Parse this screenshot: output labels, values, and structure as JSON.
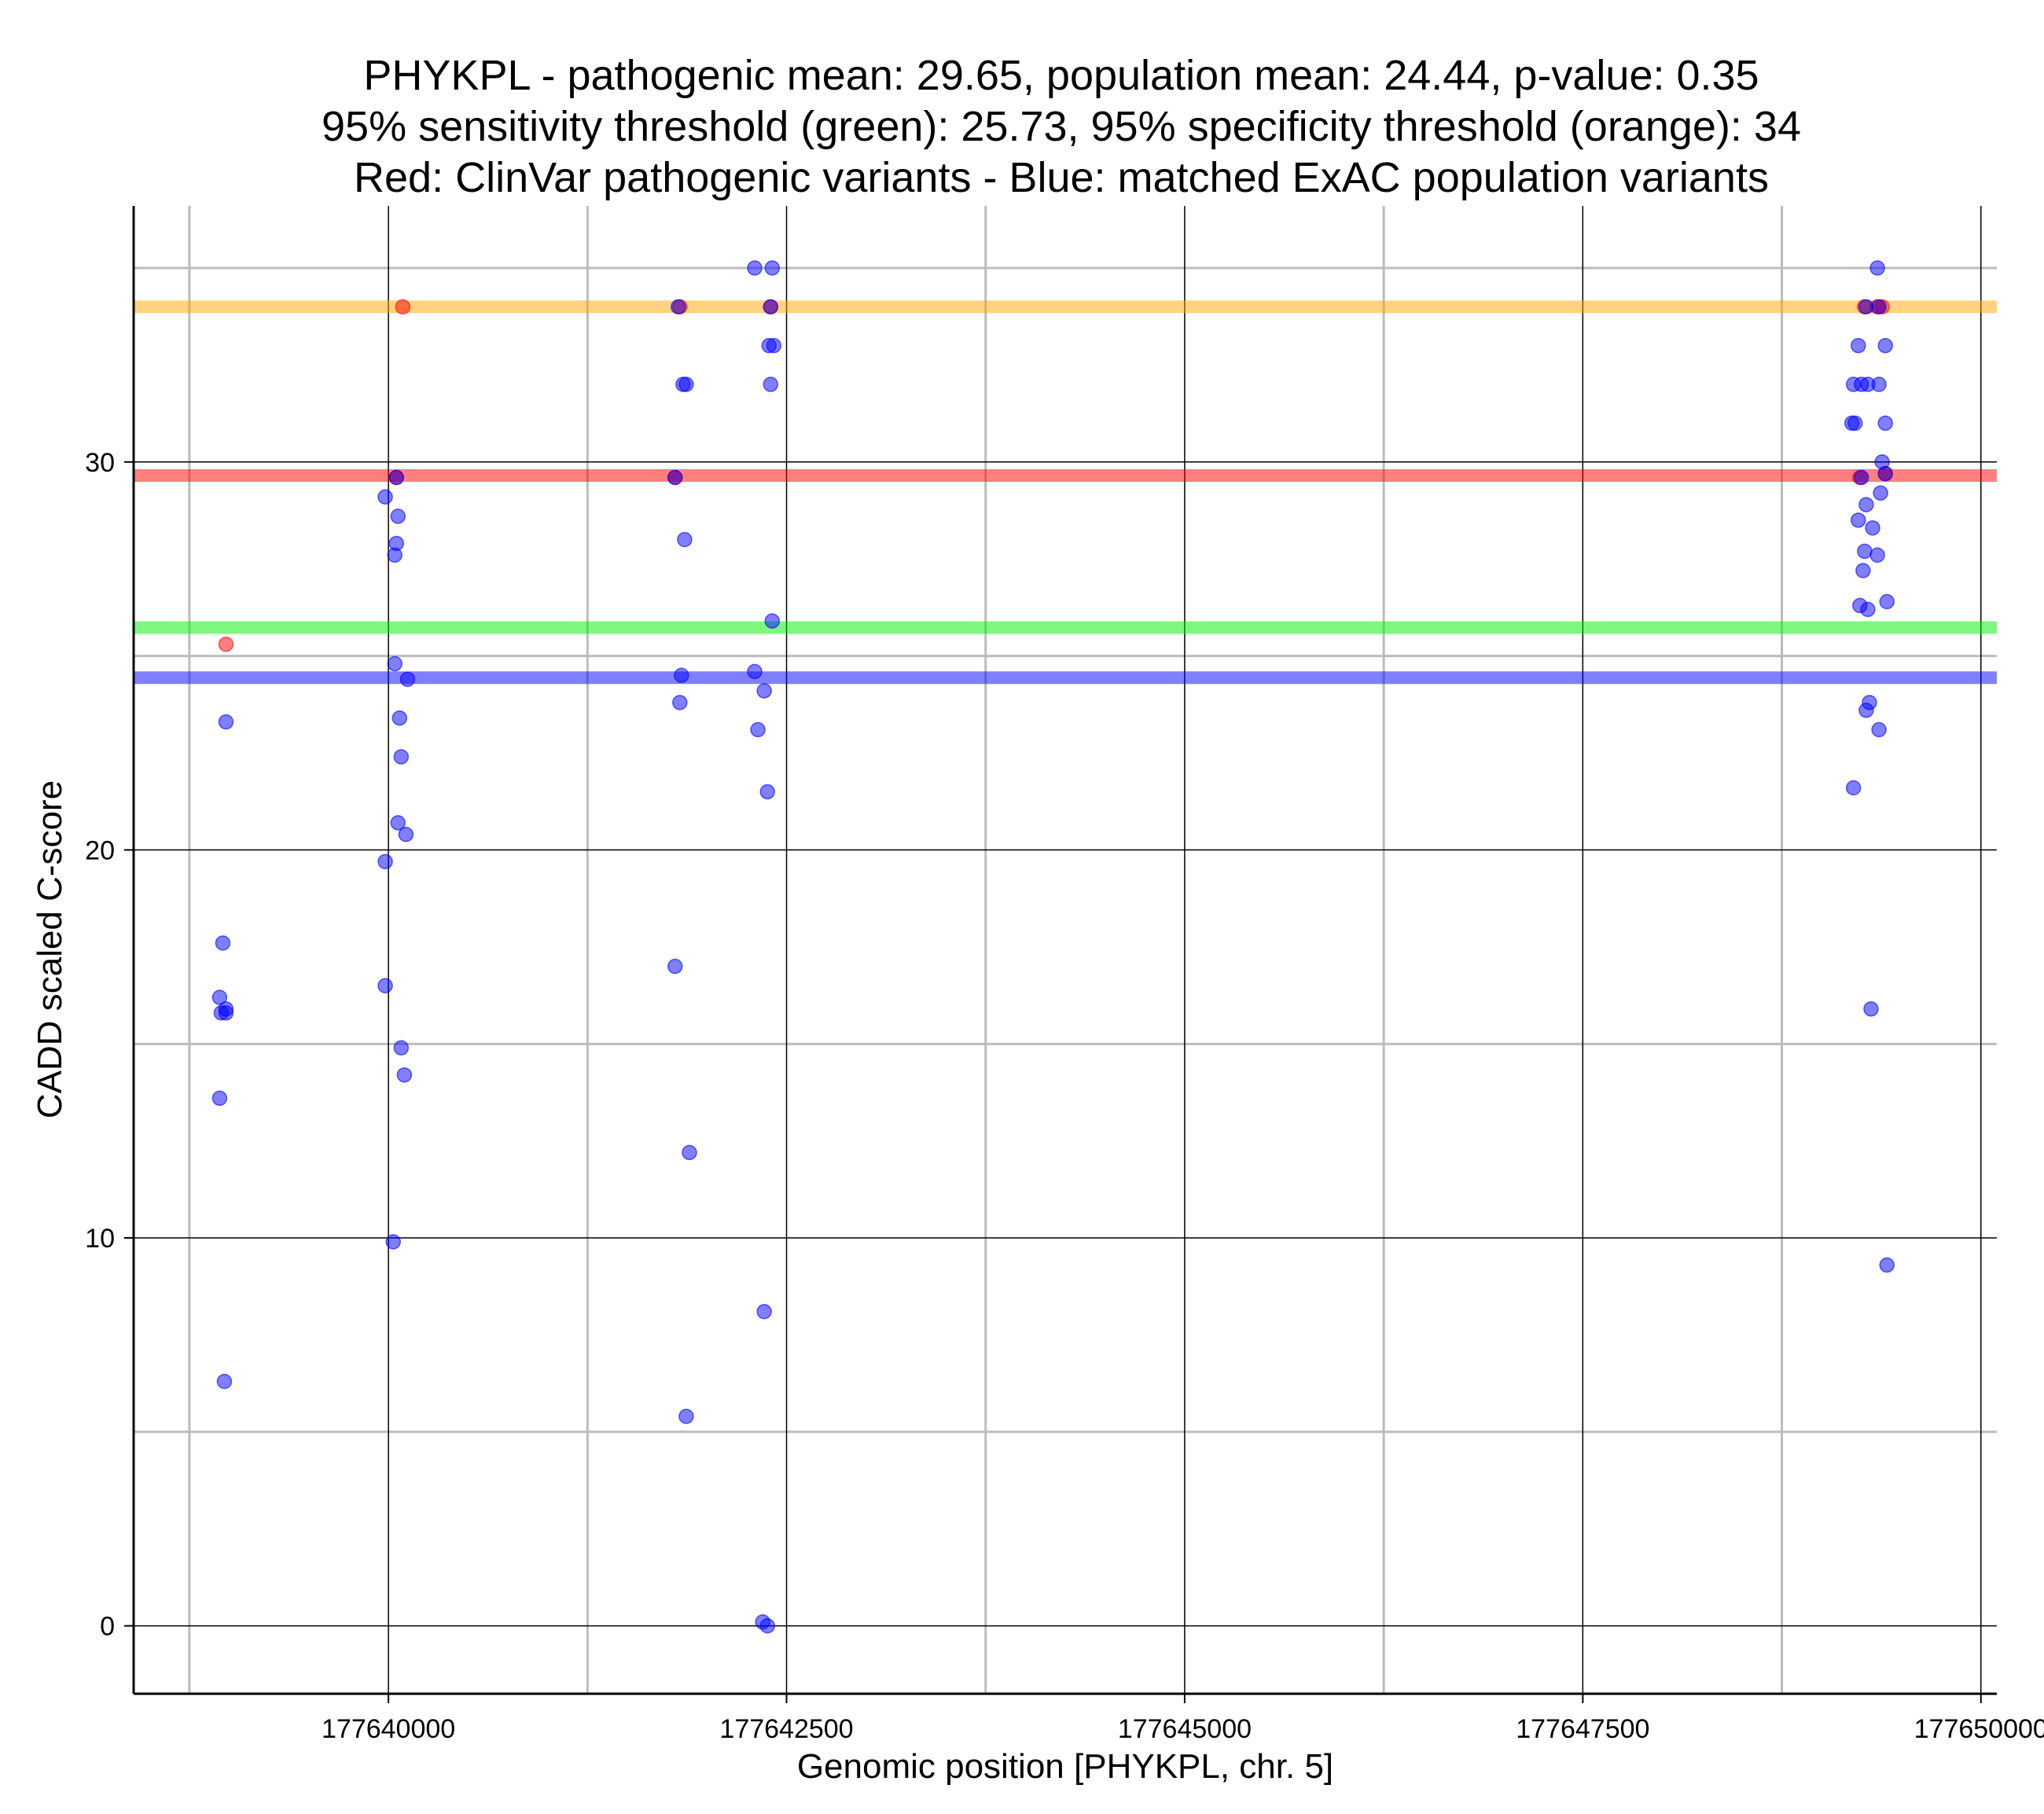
{
  "chart_data": {
    "type": "scatter",
    "title_lines": [
      "PHYKPL - pathogenic mean: 29.65, population mean: 24.44, p-value: 0.35",
      "95% sensitivity threshold (green): 25.73, 95% specificity threshold (orange): 34",
      "Red: ClinVar pathogenic variants - Blue: matched ExAC population variants"
    ],
    "xlabel": "Genomic position [PHYKPL, chr. 5]",
    "ylabel": "CADD scaled C-score",
    "xlim": [
      177638400,
      177650100
    ],
    "ylim": [
      -1.75,
      36.6
    ],
    "x_major_ticks": [
      177640000,
      177642500,
      177645000,
      177647500,
      177650000
    ],
    "x_tick_labels": [
      "177640000",
      "177642500",
      "177645000",
      "177647500",
      "177650000"
    ],
    "x_minor_ticks": [
      177638750,
      177641250,
      177643750,
      177646250,
      177648750
    ],
    "y_major_ticks": [
      0,
      10,
      20,
      30
    ],
    "y_tick_labels": [
      "0",
      "10",
      "20",
      "30"
    ],
    "y_minor_ticks": [
      5,
      15,
      25,
      35
    ],
    "hlines": [
      {
        "name": "specificity-threshold",
        "y": 34,
        "color": "#FFA500"
      },
      {
        "name": "pathogenic-mean",
        "y": 29.65,
        "color": "#FF0000"
      },
      {
        "name": "sensitivity-threshold",
        "y": 25.73,
        "color": "#00EE00"
      },
      {
        "name": "population-mean",
        "y": 24.44,
        "color": "#0000FF"
      }
    ],
    "series": [
      {
        "name": "ClinVar pathogenic variants",
        "color": "#FF0000",
        "points": [
          [
            177638980,
            25.3
          ],
          [
            177640050,
            29.6
          ],
          [
            177640090,
            34
          ],
          [
            177641800,
            29.6
          ],
          [
            177641830,
            34
          ],
          [
            177642400,
            34
          ],
          [
            177649240,
            29.6
          ],
          [
            177649270,
            34
          ],
          [
            177649350,
            34
          ],
          [
            177649380,
            34
          ],
          [
            177649400,
            29.7
          ]
        ]
      },
      {
        "name": "matched ExAC population variants",
        "color": "#0000FF",
        "points": [
          [
            177638980,
            23.3
          ],
          [
            177638960,
            17.6
          ],
          [
            177638940,
            16.2
          ],
          [
            177638950,
            15.8
          ],
          [
            177638980,
            15.8
          ],
          [
            177638980,
            15.9
          ],
          [
            177638940,
            13.6
          ],
          [
            177638970,
            6.3
          ],
          [
            177639980,
            29.1
          ],
          [
            177640050,
            29.6
          ],
          [
            177640060,
            28.6
          ],
          [
            177640050,
            27.9
          ],
          [
            177640040,
            27.6
          ],
          [
            177640040,
            24.8
          ],
          [
            177640120,
            24.4
          ],
          [
            177640070,
            23.4
          ],
          [
            177640080,
            22.4
          ],
          [
            177640060,
            20.7
          ],
          [
            177640110,
            20.4
          ],
          [
            177639980,
            19.7
          ],
          [
            177639980,
            16.5
          ],
          [
            177640080,
            14.9
          ],
          [
            177640100,
            14.2
          ],
          [
            177640030,
            9.9
          ],
          [
            177641820,
            34
          ],
          [
            177641850,
            32
          ],
          [
            177641870,
            32
          ],
          [
            177641800,
            29.6
          ],
          [
            177641860,
            28
          ],
          [
            177641840,
            24.5
          ],
          [
            177641830,
            23.8
          ],
          [
            177641800,
            17
          ],
          [
            177641890,
            12.2
          ],
          [
            177641870,
            5.4
          ],
          [
            177642300,
            35
          ],
          [
            177642410,
            35
          ],
          [
            177642400,
            34
          ],
          [
            177642390,
            33
          ],
          [
            177642420,
            33
          ],
          [
            177642400,
            32
          ],
          [
            177642410,
            25.9
          ],
          [
            177642300,
            24.6
          ],
          [
            177642360,
            24.1
          ],
          [
            177642320,
            23.1
          ],
          [
            177642380,
            21.5
          ],
          [
            177642360,
            8.1
          ],
          [
            177642350,
            0.1
          ],
          [
            177642380,
            0
          ],
          [
            177649350,
            35
          ],
          [
            177649280,
            34
          ],
          [
            177649360,
            34
          ],
          [
            177649230,
            33
          ],
          [
            177649400,
            33
          ],
          [
            177649200,
            32
          ],
          [
            177649250,
            32
          ],
          [
            177649290,
            32
          ],
          [
            177649360,
            32
          ],
          [
            177649190,
            31
          ],
          [
            177649210,
            31
          ],
          [
            177649400,
            31
          ],
          [
            177649380,
            30
          ],
          [
            177649250,
            29.6
          ],
          [
            177649400,
            29.7
          ],
          [
            177649370,
            29.2
          ],
          [
            177649280,
            28.9
          ],
          [
            177649230,
            28.5
          ],
          [
            177649320,
            28.3
          ],
          [
            177649270,
            27.7
          ],
          [
            177649350,
            27.6
          ],
          [
            177649260,
            27.2
          ],
          [
            177649410,
            26.4
          ],
          [
            177649240,
            26.3
          ],
          [
            177649290,
            26.2
          ],
          [
            177649300,
            23.8
          ],
          [
            177649280,
            23.6
          ],
          [
            177649360,
            23.1
          ],
          [
            177649200,
            21.6
          ],
          [
            177649310,
            15.9
          ],
          [
            177649410,
            9.3
          ]
        ]
      }
    ]
  }
}
